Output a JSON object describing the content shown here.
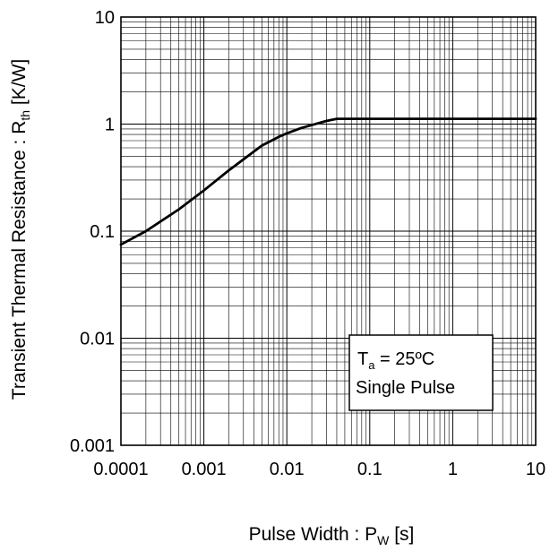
{
  "chart_data": {
    "type": "line",
    "title": "",
    "xlabel": {
      "main": "Pulse Width : P",
      "sub": "W",
      "unit": " [s]"
    },
    "ylabel": {
      "main": "Transient Thermal Resistance : R",
      "sub": "th",
      "unit": " [K/W]"
    },
    "x_scale": "log",
    "y_scale": "log",
    "xlim": [
      0.0001,
      10
    ],
    "ylim": [
      0.001,
      10
    ],
    "x_ticks": [
      {
        "value": 0.0001,
        "label": "0.0001"
      },
      {
        "value": 0.001,
        "label": "0.001"
      },
      {
        "value": 0.01,
        "label": "0.01"
      },
      {
        "value": 0.1,
        "label": "0.1"
      },
      {
        "value": 1,
        "label": "1"
      },
      {
        "value": 10,
        "label": "10"
      }
    ],
    "y_ticks": [
      {
        "value": 0.001,
        "label": "0.001"
      },
      {
        "value": 0.01,
        "label": "0.01"
      },
      {
        "value": 0.1,
        "label": "0.1"
      },
      {
        "value": 1,
        "label": "1"
      },
      {
        "value": 10,
        "label": "10"
      }
    ],
    "grid": true,
    "series": [
      {
        "x": [
          0.0001,
          0.0002,
          0.0005,
          0.001,
          0.002,
          0.005,
          0.008,
          0.01,
          0.015,
          0.02,
          0.03,
          0.04,
          0.05,
          0.1,
          1,
          10
        ],
        "y": [
          0.075,
          0.1,
          0.16,
          0.24,
          0.37,
          0.63,
          0.76,
          0.82,
          0.92,
          0.98,
          1.07,
          1.12,
          1.12,
          1.12,
          1.12,
          1.12
        ],
        "color": "#000000"
      }
    ],
    "annotation": {
      "line1_main": "T",
      "line1_sub": "a",
      "line1_rest": " = 25ºC",
      "line2": "Single Pulse"
    }
  }
}
